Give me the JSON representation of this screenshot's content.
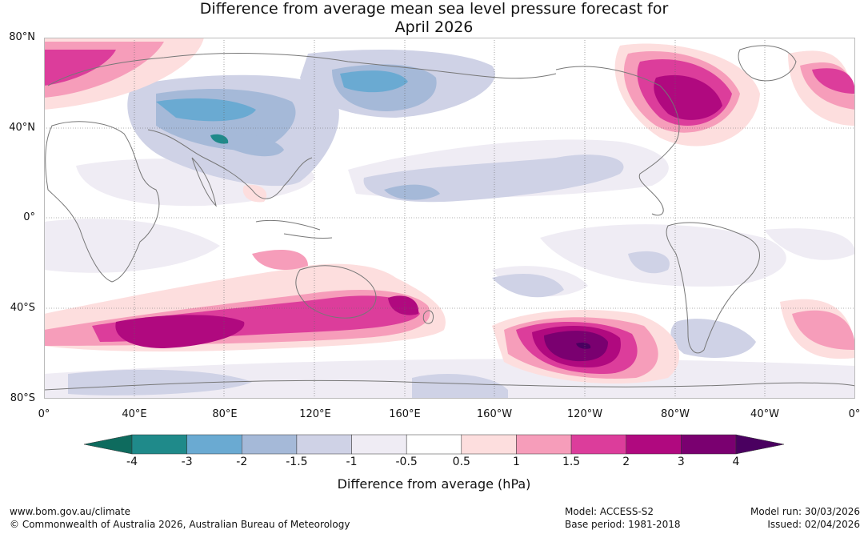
{
  "title": {
    "line1": "Difference from average mean sea level pressure forecast for",
    "line2": "April 2026"
  },
  "lat_labels": [
    "80°N",
    "40°N",
    "0°",
    "40°S",
    "80°S"
  ],
  "lon_labels": [
    "0°",
    "40°E",
    "80°E",
    "120°E",
    "160°E",
    "160°W",
    "120°W",
    "80°W",
    "40°W",
    "0°"
  ],
  "colorbar": {
    "ticks": [
      "-4",
      "-3",
      "-2",
      "-1.5",
      "-1",
      "-0.5",
      "0.5",
      "1",
      "1.5",
      "2",
      "3",
      "4"
    ],
    "colors": [
      "#1f8a8a",
      "#6aaad2",
      "#a5b9d8",
      "#cfd2e6",
      "#efecf4",
      "#ffffff",
      "#fddede",
      "#f69dba",
      "#dc3d9b",
      "#b0097f",
      "#7a0070"
    ],
    "low_color": "#0e6b5e",
    "high_color": "#4a0060",
    "label": "Difference from average (hPa)"
  },
  "footer": {
    "url": "www.bom.gov.au/climate",
    "copyright": "© Commonwealth of Australia 2026, Australian Bureau of Meteorology",
    "model": "Model: ACCESS-S2",
    "base_period": "Base period: 1981-2018",
    "model_run": "Model run: 30/03/2026",
    "issued": "Issued: 02/04/2026"
  }
}
